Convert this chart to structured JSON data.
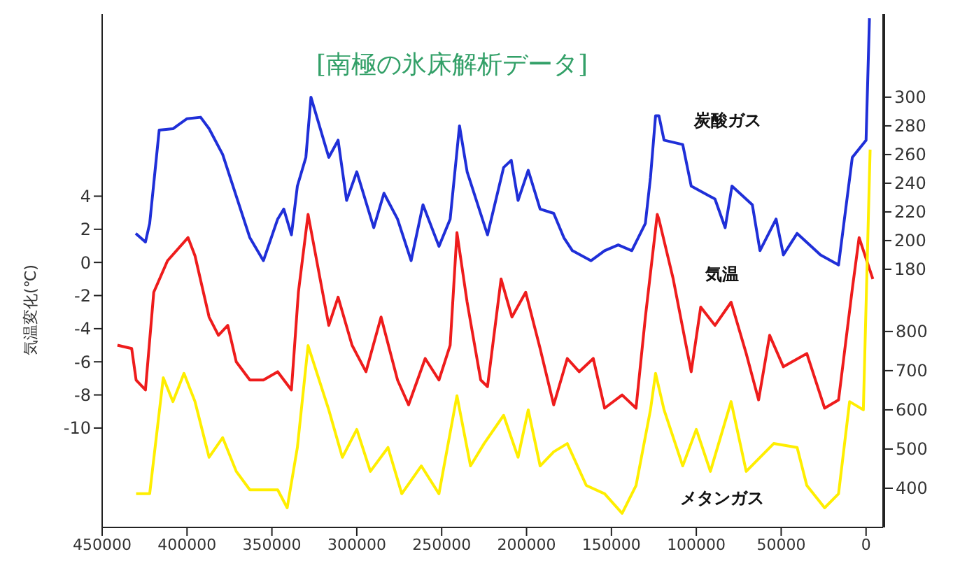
{
  "chart_data": {
    "type": "line",
    "title": "[南極の氷床解析データ]",
    "ylabel": "気温変化(℃)",
    "xlim": [
      450000,
      -10000
    ],
    "xticks": [
      450000,
      400000,
      350000,
      300000,
      250000,
      200000,
      150000,
      100000,
      50000,
      0
    ],
    "ylim": [
      -16,
      15
    ],
    "yticks": [
      4,
      2,
      0,
      -2,
      -4,
      -6,
      -8,
      -10
    ],
    "y2lim": [
      0,
      358
    ],
    "y2ticks": [
      180,
      200,
      220,
      240,
      260,
      280,
      300
    ],
    "y3lim": [
      300,
      1610
    ],
    "y3ticks": [
      400,
      500,
      600,
      700,
      800
    ],
    "series": [
      {
        "name": "炭酸ガス",
        "color": "#1f2fd8",
        "axis": "y2",
        "x": [
          430200,
          424500,
          422000,
          416400,
          408300,
          400000,
          392000,
          387000,
          379000,
          371000,
          363000,
          355000,
          346600,
          343000,
          338500,
          335000,
          330000,
          327000,
          316500,
          311000,
          306000,
          300000,
          290000,
          284000,
          276000,
          268000,
          261000,
          251600,
          245000,
          239500,
          235000,
          223000,
          213500,
          209000,
          205000,
          199000,
          192000,
          184000,
          178000,
          173000,
          162000,
          154000,
          146000,
          138000,
          130000,
          127000,
          124000,
          122000,
          119000,
          108000,
          103000,
          89000,
          83000,
          79000,
          67000,
          62500,
          53000,
          48700,
          40600,
          26800,
          16200,
          8100,
          0,
          -2000
        ],
        "values": [
          205,
          199,
          212,
          277,
          278,
          285,
          286,
          278,
          260,
          231,
          202,
          186,
          215,
          222,
          204,
          238,
          258,
          300,
          258,
          270,
          228,
          248,
          209,
          233,
          215,
          186,
          225,
          196,
          215,
          280,
          248,
          204,
          251,
          256,
          228,
          249,
          222,
          219,
          202,
          193,
          186,
          193,
          197,
          193,
          212,
          244,
          287,
          287,
          270,
          267,
          238,
          229,
          209,
          238,
          225,
          193,
          215,
          190,
          205,
          190,
          183,
          258,
          270,
          355
        ]
      },
      {
        "name": "気温",
        "color": "#ee1c1c",
        "axis": "y",
        "x": [
          441000,
          432600,
          430000,
          424500,
          419600,
          411500,
          399400,
          395300,
          387000,
          381500,
          376000,
          371000,
          363000,
          355000,
          346600,
          338500,
          334400,
          328700,
          316500,
          311000,
          302800,
          294600,
          285700,
          276000,
          269500,
          259700,
          251600,
          245000,
          241000,
          235000,
          227000,
          223000,
          215000,
          208600,
          200500,
          192000,
          184000,
          176000,
          169000,
          160700,
          154000,
          143700,
          135500,
          130000,
          123000,
          122000,
          113600,
          103000,
          97400,
          89000,
          79500,
          70600,
          63300,
          56800,
          48700,
          34900,
          24400,
          16200,
          8100,
          4100,
          -4000
        ],
        "values": [
          -5.0,
          -5.2,
          -7.1,
          -7.7,
          -1.8,
          0.1,
          1.5,
          0.4,
          -3.3,
          -4.4,
          -3.8,
          -6.0,
          -7.1,
          -7.1,
          -6.6,
          -7.7,
          -1.8,
          2.9,
          -3.8,
          -2.1,
          -5.0,
          -6.6,
          -3.3,
          -7.1,
          -8.6,
          -5.8,
          -7.1,
          -5.0,
          1.8,
          -2.4,
          -7.1,
          -7.5,
          -1.0,
          -3.3,
          -1.8,
          -5.2,
          -8.6,
          -5.8,
          -6.6,
          -5.8,
          -8.8,
          -8.0,
          -8.8,
          -3.3,
          2.9,
          2.6,
          -1.0,
          -6.6,
          -2.7,
          -3.8,
          -2.4,
          -5.5,
          -8.3,
          -4.4,
          -6.3,
          -5.5,
          -8.8,
          -8.3,
          -1.6,
          1.5,
          -1.0
        ]
      },
      {
        "name": "メタンガス",
        "color": "#ffee00",
        "axis": "y3",
        "x": [
          430000,
          422000,
          414000,
          408300,
          401800,
          395300,
          387000,
          379000,
          371000,
          363000,
          346600,
          341000,
          335000,
          328700,
          316500,
          308500,
          300000,
          292000,
          281600,
          273500,
          262000,
          251600,
          241000,
          233000,
          225000,
          213500,
          205000,
          199000,
          192000,
          184000,
          176000,
          164800,
          154000,
          143700,
          135500,
          127000,
          124000,
          119000,
          108000,
          100000,
          91700,
          79500,
          70600,
          54400,
          40600,
          34900,
          24400,
          16200,
          9700,
          1600,
          -2400
        ],
        "values": [
          386,
          386,
          682,
          621,
          693,
          621,
          479,
          529,
          443,
          396,
          396,
          350,
          504,
          764,
          600,
          479,
          550,
          443,
          504,
          386,
          457,
          386,
          636,
          457,
          514,
          586,
          479,
          600,
          457,
          493,
          514,
          407,
          386,
          336,
          407,
          600,
          693,
          600,
          457,
          550,
          443,
          621,
          443,
          514,
          504,
          407,
          350,
          386,
          621,
          600,
          1264
        ]
      }
    ]
  }
}
